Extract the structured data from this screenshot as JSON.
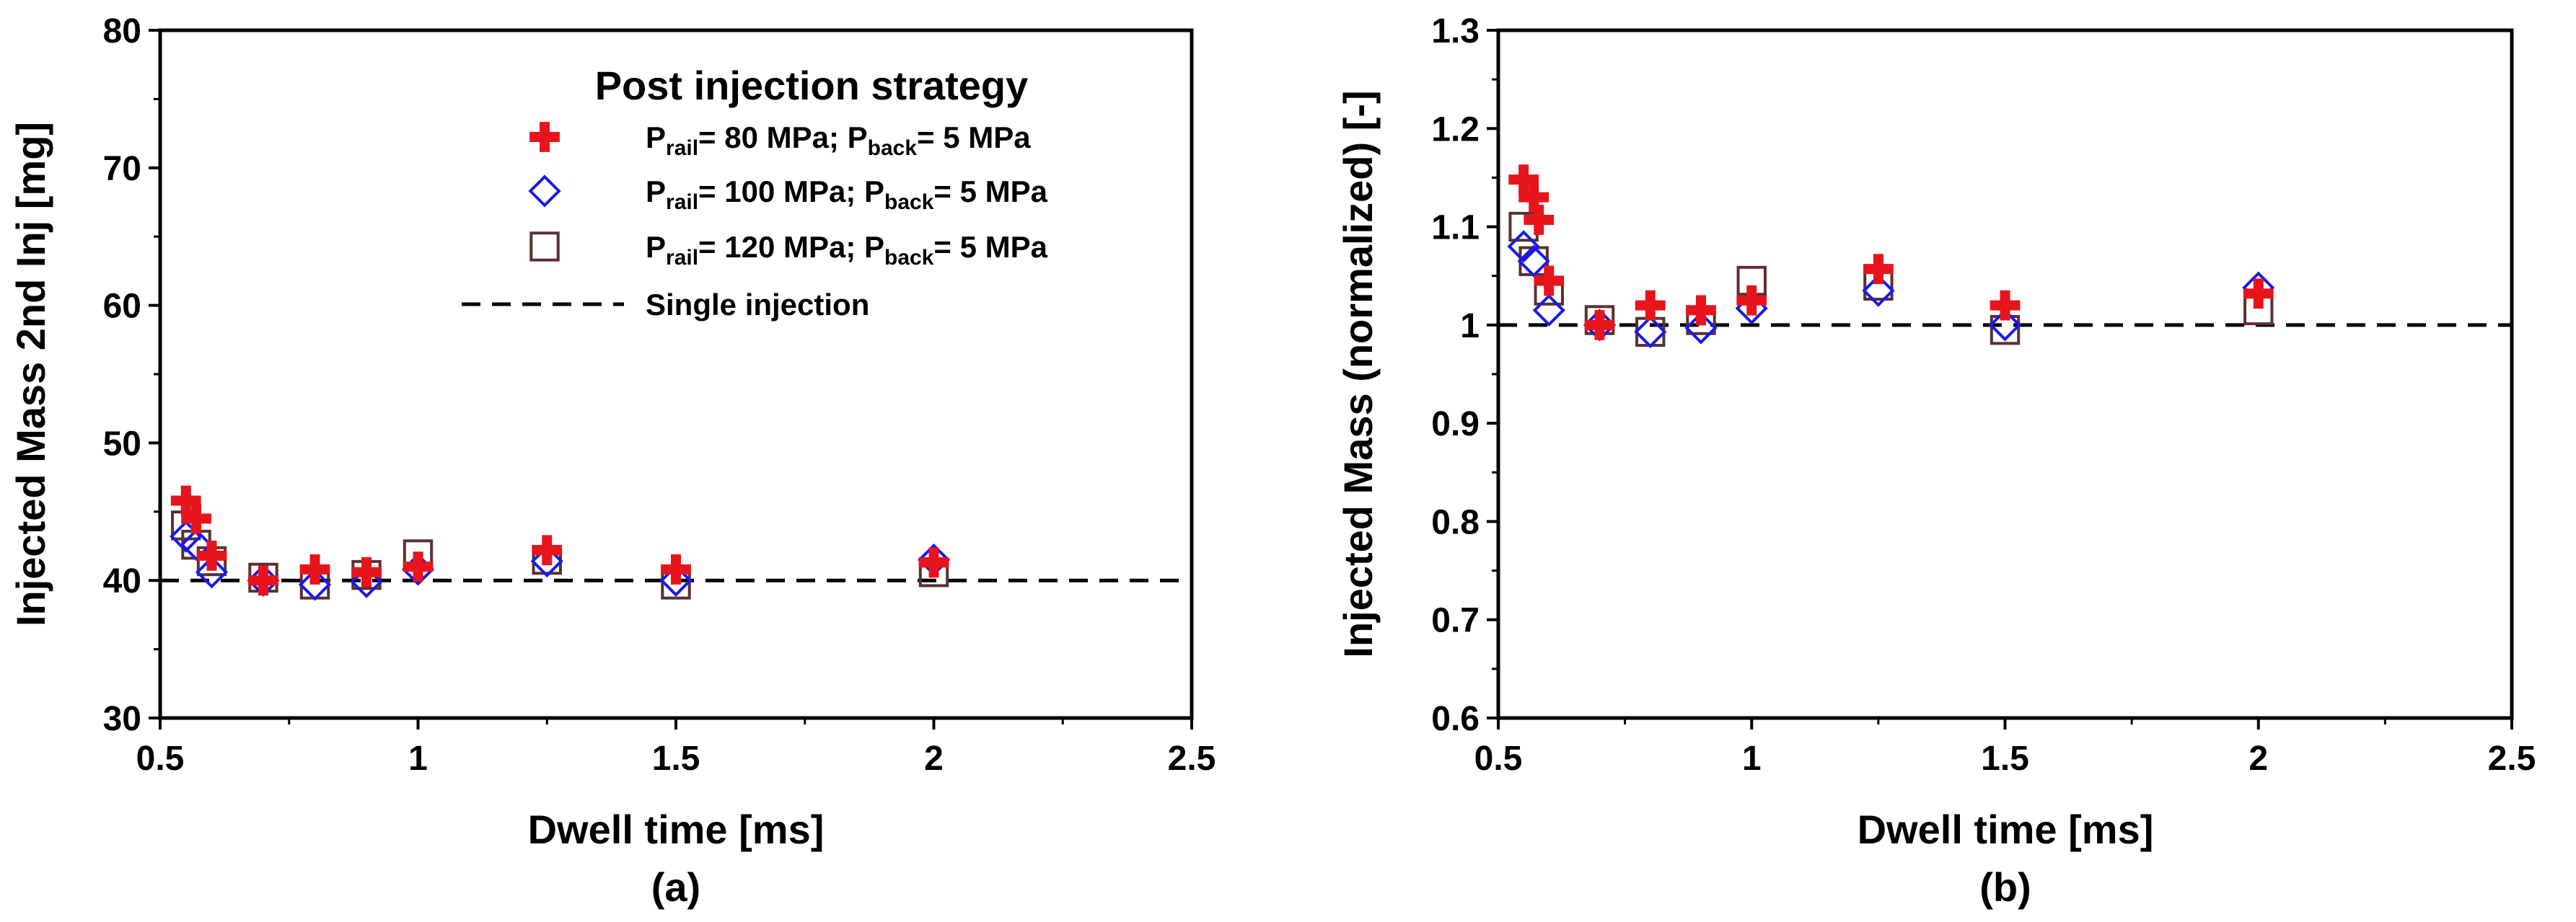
{
  "chart_data": [
    {
      "id": "a",
      "type": "scatter",
      "caption": "(a)",
      "xlabel": "Dwell time [ms]",
      "ylabel": "Injected Mass 2nd Inj [mg]",
      "xlim": [
        0.5,
        2.5
      ],
      "ylim": [
        30,
        80
      ],
      "xticks": [
        "0.5",
        "1",
        "1.5",
        "2",
        "2.5"
      ],
      "xtick_values": [
        0.5,
        1,
        1.5,
        2,
        2.5
      ],
      "yticks": [
        "30",
        "40",
        "50",
        "60",
        "70",
        "80"
      ],
      "ytick_values": [
        30,
        40,
        50,
        60,
        70,
        80
      ],
      "legend": {
        "title": "Post injection strategy",
        "location": "top-right",
        "entries": [
          {
            "main1": "P",
            "sub1": "rail",
            "main2": "= 80 MPa; P",
            "sub2": "back",
            "main3": "= 5 MPa"
          },
          {
            "main1": "P",
            "sub1": "rail",
            "main2": "= 100 MPa; P",
            "sub2": "back",
            "main3": "= 5 MPa"
          },
          {
            "main1": "P",
            "sub1": "rail",
            "main2": "= 120 MPa; P",
            "sub2": "back",
            "main3": "= 5 MPa"
          },
          {
            "label": "Single injection"
          }
        ]
      },
      "reference_line": {
        "name": "Single injection",
        "y": 40,
        "style": "dashed"
      },
      "series": [
        {
          "name": "Prail= 80 MPa; Pback= 5 MPa",
          "marker": "plus",
          "color": "#e8141c",
          "x": [
            0.55,
            0.57,
            0.6,
            0.7,
            0.8,
            0.9,
            1.0,
            1.25,
            1.5,
            2.0
          ],
          "y": [
            45.8,
            44.5,
            41.8,
            40.0,
            40.8,
            40.6,
            41.0,
            42.2,
            40.8,
            41.3
          ]
        },
        {
          "name": "Prail= 100 MPa; Pback= 5 MPa",
          "marker": "diamond",
          "color": "#1a1ae6",
          "x": [
            0.55,
            0.57,
            0.6,
            0.7,
            0.8,
            0.9,
            1.0,
            1.25,
            1.5,
            2.0
          ],
          "y": [
            43.2,
            42.6,
            40.6,
            40.0,
            39.7,
            39.9,
            40.8,
            41.4,
            40.0,
            41.5
          ]
        },
        {
          "name": "Prail= 120 MPa; Pback= 5 MPa",
          "marker": "square",
          "color": "#5a3030",
          "x": [
            0.55,
            0.57,
            0.6,
            0.7,
            0.8,
            0.9,
            1.0,
            1.25,
            1.5,
            2.0
          ],
          "y": [
            44.0,
            42.6,
            41.4,
            40.2,
            39.7,
            40.4,
            41.9,
            41.5,
            39.7,
            40.6
          ]
        }
      ]
    },
    {
      "id": "b",
      "type": "scatter",
      "caption": "(b)",
      "xlabel": "Dwell time [ms]",
      "ylabel": "Injected Mass (normalized) [-]",
      "xlim": [
        0.5,
        2.5
      ],
      "ylim": [
        0.6,
        1.3
      ],
      "xticks": [
        "0.5",
        "1",
        "1.5",
        "2",
        "2.5"
      ],
      "xtick_values": [
        0.5,
        1,
        1.5,
        2,
        2.5
      ],
      "yticks": [
        "0.6",
        "0.7",
        "0.8",
        "0.9",
        "1",
        "1.1",
        "1.2",
        "1.3"
      ],
      "ytick_values": [
        0.6,
        0.7,
        0.8,
        0.9,
        1.0,
        1.1,
        1.2,
        1.3
      ],
      "reference_line": {
        "name": "Single injection",
        "y": 1.0,
        "style": "dashed"
      },
      "series": [
        {
          "name": "Prail= 80 MPa; Pback= 5 MPa",
          "marker": "plus",
          "color": "#e8141c",
          "x": [
            0.55,
            0.57,
            0.58,
            0.6,
            0.7,
            0.8,
            0.9,
            1.0,
            1.25,
            1.5,
            2.0
          ],
          "y": [
            1.148,
            1.13,
            1.107,
            1.045,
            1.0,
            1.02,
            1.015,
            1.025,
            1.057,
            1.02,
            1.032
          ]
        },
        {
          "name": "Prail= 100 MPa; Pback= 5 MPa",
          "marker": "diamond",
          "color": "#1a1ae6",
          "x": [
            0.55,
            0.57,
            0.6,
            0.7,
            0.8,
            0.9,
            1.0,
            1.25,
            1.5,
            2.0
          ],
          "y": [
            1.08,
            1.065,
            1.015,
            1.0,
            0.993,
            0.997,
            1.017,
            1.035,
            1.0,
            1.038
          ]
        },
        {
          "name": "Prail= 120 MPa; Pback= 5 MPa",
          "marker": "square",
          "color": "#5a3030",
          "x": [
            0.55,
            0.57,
            0.6,
            0.7,
            0.8,
            0.9,
            1.0,
            1.25,
            1.5,
            2.0
          ],
          "y": [
            1.1,
            1.065,
            1.035,
            1.005,
            0.993,
            1.005,
            1.045,
            1.04,
            0.995,
            1.015
          ]
        }
      ]
    }
  ]
}
